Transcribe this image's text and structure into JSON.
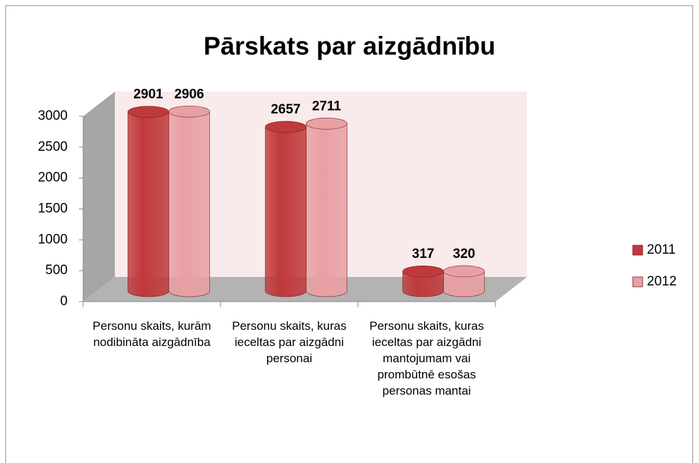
{
  "chart_data": {
    "type": "bar3d",
    "title": "Pārskats par aizgādnību",
    "categories": [
      "Personu skaits, kurām nodibināta aizgādnība",
      "Personu skaits, kuras ieceltas par aizgādni personai",
      "Personu skaits, kuras ieceltas par aizgādni mantojumam vai prombūtnē esošas personas mantai"
    ],
    "series": [
      {
        "name": "2011",
        "color": "#c0393b",
        "values": [
          2901,
          2657,
          317
        ]
      },
      {
        "name": "2012",
        "color": "#e8a0a3",
        "values": [
          2906,
          2711,
          320
        ]
      }
    ],
    "ylim": [
      0,
      3000
    ],
    "yticks": [
      0,
      500,
      1000,
      1500,
      2000,
      2500,
      3000
    ],
    "legend": "right"
  }
}
